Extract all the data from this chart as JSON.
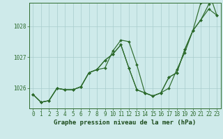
{
  "line1": [
    1025.8,
    1025.55,
    1025.6,
    1026.0,
    1025.95,
    1025.95,
    1026.05,
    1026.5,
    1026.6,
    1026.65,
    1027.2,
    1027.55,
    1027.5,
    1026.75,
    1025.85,
    1025.75,
    1025.85,
    1026.0,
    1026.6,
    1027.15,
    1027.85,
    1028.2,
    1028.7,
    1029.0
  ],
  "line2": [
    1025.8,
    1025.55,
    1025.6,
    1026.0,
    1025.95,
    1025.95,
    1026.05,
    1026.5,
    1026.6,
    1026.9,
    1027.1,
    1027.4,
    1026.65,
    1025.95,
    1025.85,
    1025.75,
    1025.85,
    1026.35,
    1026.5,
    1027.25,
    1027.85,
    1028.2,
    1028.55,
    1028.35
  ],
  "line3": [
    1025.8,
    1025.55,
    1025.6,
    1026.0,
    1025.95,
    1025.95,
    1026.05,
    1026.5,
    1026.6,
    1026.9,
    1027.1,
    1027.4,
    1026.65,
    1025.95,
    1025.85,
    1025.75,
    1025.85,
    1026.35,
    1026.5,
    1027.25,
    1027.85,
    1028.75,
    1029.1,
    1028.35
  ],
  "x": [
    0,
    1,
    2,
    3,
    4,
    5,
    6,
    7,
    8,
    9,
    10,
    11,
    12,
    13,
    14,
    15,
    16,
    17,
    18,
    19,
    20,
    21,
    22,
    23
  ],
  "ylim": [
    1025.35,
    1028.75
  ],
  "yticks": [
    1026,
    1027,
    1028
  ],
  "xticks": [
    0,
    1,
    2,
    3,
    4,
    5,
    6,
    7,
    8,
    9,
    10,
    11,
    12,
    13,
    14,
    15,
    16,
    17,
    18,
    19,
    20,
    21,
    22,
    23
  ],
  "line_color": "#2d6b2d",
  "bg_color": "#ceeaea",
  "grid_color": "#a8cccc",
  "xlabel": "Graphe pression niveau de la mer (hPa)",
  "xlabel_color": "#1a4a1a",
  "tick_color": "#2d6b2d",
  "axis_color": "#2d6b2d",
  "tick_fontsize": 5.5,
  "xlabel_fontsize": 6.5
}
